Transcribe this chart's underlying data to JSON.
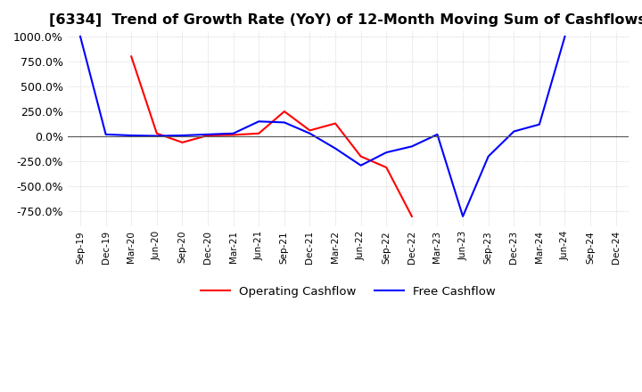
{
  "title": "[6334]  Trend of Growth Rate (YoY) of 12-Month Moving Sum of Cashflows",
  "title_fontsize": 11.5,
  "ylim": [
    -900,
    1050
  ],
  "yticks": [
    -750,
    -500,
    -250,
    0,
    250,
    500,
    750,
    1000
  ],
  "yticklabels": [
    "-750.0%",
    "-500.0%",
    "-250.0%",
    "0.0%",
    "250.0%",
    "500.0%",
    "750.0%",
    "1000.0%"
  ],
  "background_color": "#ffffff",
  "grid_color": "#c8c8c8",
  "operating_color": "#ff0000",
  "free_color": "#0000ff",
  "operating_label": "Operating Cashflow",
  "free_label": "Free Cashflow",
  "x_dates": [
    "Sep-19",
    "Dec-19",
    "Mar-20",
    "Jun-20",
    "Sep-20",
    "Dec-20",
    "Mar-21",
    "Jun-21",
    "Sep-21",
    "Dec-21",
    "Mar-22",
    "Jun-22",
    "Sep-22",
    "Dec-22",
    "Mar-23",
    "Jun-23",
    "Sep-23",
    "Dec-23",
    "Mar-24",
    "Jun-24",
    "Sep-24",
    "Dec-24"
  ],
  "operating_values": [
    null,
    null,
    800,
    30,
    -60,
    10,
    15,
    30,
    250,
    60,
    130,
    -200,
    -310,
    -800,
    null,
    null,
    null,
    null,
    null,
    null,
    null,
    null
  ],
  "free_values": [
    1000,
    20,
    10,
    5,
    10,
    20,
    30,
    150,
    140,
    30,
    -120,
    -290,
    -160,
    -100,
    20,
    -800,
    -200,
    50,
    120,
    1000,
    null,
    null
  ]
}
